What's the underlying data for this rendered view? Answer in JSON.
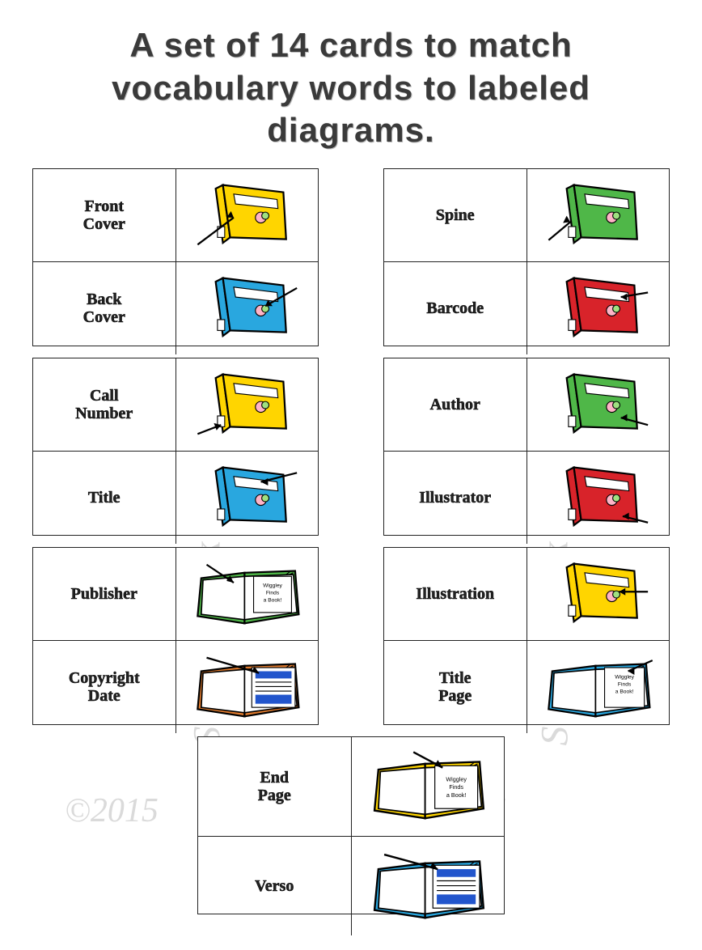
{
  "title": "A set of 14 cards to match vocabulary words to labeled diagrams.",
  "watermark_name": "Sandy Liptak",
  "watermark_year": "©2015",
  "colors": {
    "yellow": "#ffd500",
    "blue": "#29a7df",
    "green": "#4fb748",
    "red": "#d8232a",
    "orange": "#e07b2e",
    "ink": "#111111",
    "page_bg": "#ffffff"
  },
  "book_title": "Wiggley Finds a Book!",
  "pairs": [
    {
      "cards": [
        {
          "label": "Front Cover",
          "book": "closed",
          "color": "yellow",
          "arrow": "front"
        },
        {
          "label": "Back Cover",
          "book": "closed",
          "color": "blue",
          "arrow": "back"
        }
      ]
    },
    {
      "cards": [
        {
          "label": "Spine",
          "book": "closed",
          "color": "green",
          "arrow": "spine"
        },
        {
          "label": "Barcode",
          "book": "closed",
          "color": "red",
          "arrow": "barcode"
        }
      ]
    },
    {
      "cards": [
        {
          "label": "Call Number",
          "book": "closed",
          "color": "yellow",
          "arrow": "callnum"
        },
        {
          "label": "Title",
          "book": "closed",
          "color": "blue",
          "arrow": "title"
        }
      ]
    },
    {
      "cards": [
        {
          "label": "Author",
          "book": "closed",
          "color": "green",
          "arrow": "author"
        },
        {
          "label": "Illustrator",
          "book": "closed",
          "color": "red",
          "arrow": "illus"
        }
      ]
    },
    {
      "cards": [
        {
          "label": "Publisher",
          "book": "open_green",
          "color": "green",
          "arrow": "pub"
        },
        {
          "label": "Copyright Date",
          "book": "open_info",
          "color": "orange",
          "arrow": "copy"
        }
      ]
    },
    {
      "cards": [
        {
          "label": "Illustration",
          "book": "closed",
          "color": "yellow",
          "arrow": "illpic"
        },
        {
          "label": "Title Page",
          "book": "open_title",
          "color": "blue",
          "arrow": "tpage"
        }
      ]
    },
    {
      "center": true,
      "cards": [
        {
          "label": "End Page",
          "book": "open_end",
          "color": "yellow",
          "arrow": "end"
        },
        {
          "label": "Verso",
          "book": "open_info",
          "color": "blue",
          "arrow": "verso"
        }
      ]
    }
  ]
}
